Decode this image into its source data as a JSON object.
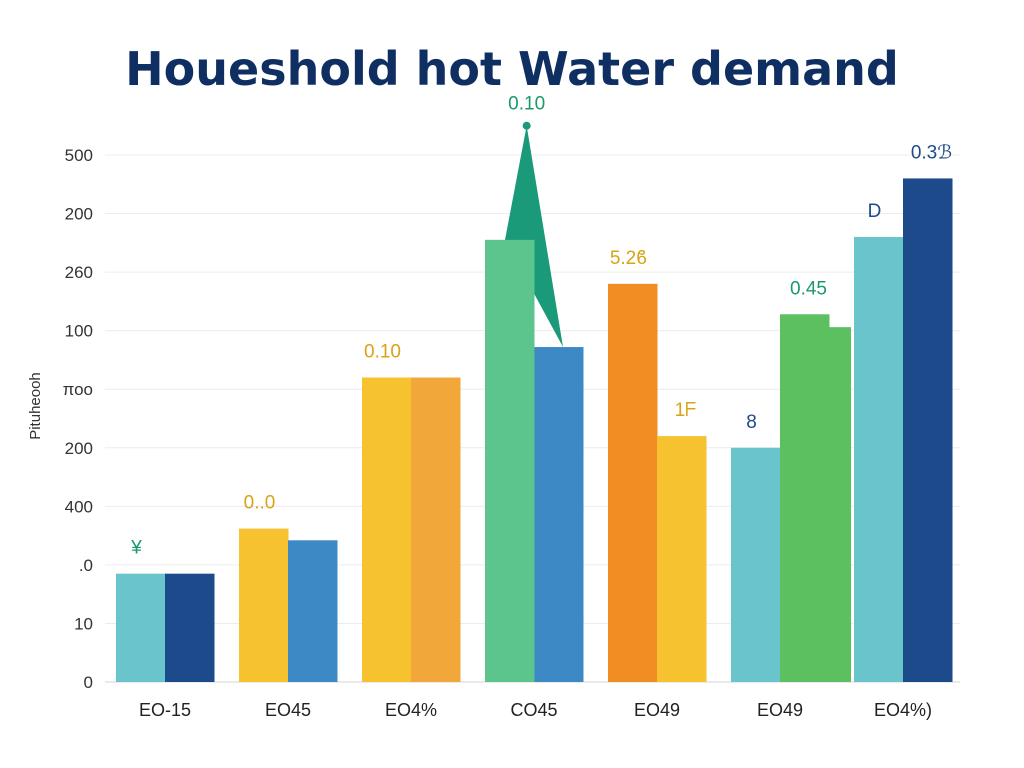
{
  "chart_data": {
    "type": "bar",
    "title": "Houeshold hot Water demand",
    "ylabel": "Pituheooh",
    "xlabel": "",
    "y_tick_labels": [
      "0",
      "10",
      ".0",
      "400",
      "200",
      "ποο",
      "100",
      "260",
      "200",
      "500"
    ],
    "categories": [
      "EO-15",
      "EO45",
      "EO4%",
      "CO45",
      "EO49",
      "EO49",
      "EO4%)"
    ],
    "ylim": [
      0,
      9
    ],
    "grid": true,
    "legend": "none",
    "bars": [
      {
        "group": 0,
        "value": 1.85,
        "color": "#6ac4cc",
        "label": "¥",
        "label_color": "#1a9a6a"
      },
      {
        "group": 0,
        "value": 1.85,
        "color": "#1d4a8a",
        "label": "",
        "label_color": "#1d4a8a"
      },
      {
        "group": 1,
        "value": 2.62,
        "color": "#f6c22f",
        "label": "0..0",
        "label_color": "#d9a315"
      },
      {
        "group": 1,
        "value": 2.42,
        "color": "#3d89c6",
        "label": "",
        "label_color": "#1d4a8a"
      },
      {
        "group": 2,
        "value": 5.2,
        "color": "#f6c22f",
        "label": "0.10",
        "label_color": "#d9a315"
      },
      {
        "group": 2,
        "value": 5.2,
        "color": "#f2a73a",
        "label": "",
        "label_color": "#d9a315"
      },
      {
        "group": 3,
        "value": 7.55,
        "color": "#5cc48e",
        "label": "",
        "label_color": "#1a9a6a"
      },
      {
        "group": 3,
        "value": 5.72,
        "color": "#3d89c6",
        "label": "",
        "label_color": "#1d4a8a"
      },
      {
        "group": 4,
        "value": 6.8,
        "color": "#f08e24",
        "label": "5.2ϐ",
        "label_color": "#d9a315"
      },
      {
        "group": 4,
        "value": 4.2,
        "color": "#f6c22f",
        "label": "1ᖴ",
        "label_color": "#d9a315"
      },
      {
        "group": 5,
        "value": 4.0,
        "color": "#6ac4cc",
        "label": "8",
        "label_color": "#1d4a8a"
      },
      {
        "group": 5,
        "value": 6.28,
        "color": "#5cc060",
        "label": "0.45",
        "label_color": "#1a9a6a"
      },
      {
        "group": 6,
        "value": 7.6,
        "color": "#6ac4cc",
        "label": "D",
        "label_color": "#1d4a8a"
      },
      {
        "group": 6,
        "value": 8.6,
        "color": "#1d4a8a",
        "label": "0.3ℬ",
        "label_color": "#1d4a8a"
      }
    ],
    "extra_bar": {
      "after_group": 5,
      "value": 6.06,
      "color": "#5cc060"
    },
    "peak_marker": {
      "group": 3,
      "value": 9.5,
      "label": "0.10",
      "color": "#1a9a78",
      "label_color": "#1a9a6a"
    }
  }
}
